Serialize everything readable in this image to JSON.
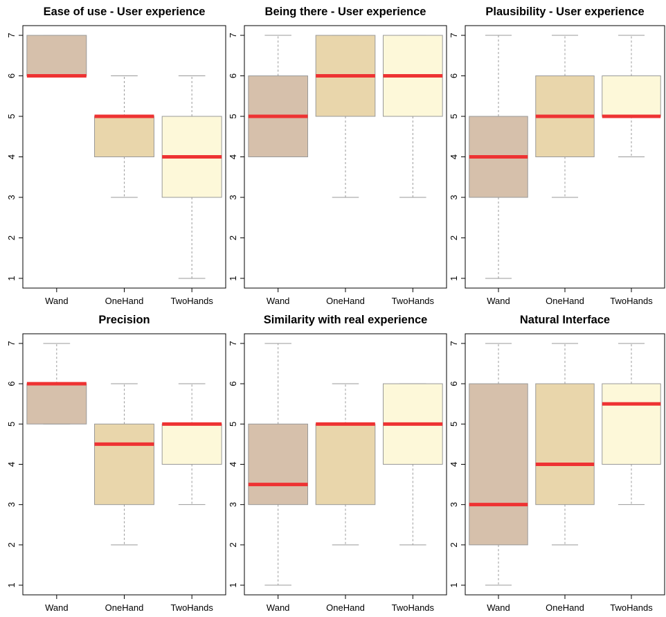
{
  "chart_data": [
    {
      "type": "box",
      "title": "Ease of use - User experience",
      "categories": [
        "Wand",
        "OneHand",
        "TwoHands"
      ],
      "colors": [
        "#d6c0ab",
        "#e9d6ab",
        "#fdf8d9"
      ],
      "median_color": "#ee3333",
      "min": [
        6,
        3,
        1
      ],
      "q1": [
        6,
        4,
        3
      ],
      "median": [
        6,
        5,
        4
      ],
      "q3": [
        7,
        5,
        5
      ],
      "max": [
        7,
        6,
        6
      ],
      "ylim": [
        0.76,
        7.24
      ],
      "yticks": [
        1,
        2,
        3,
        4,
        5,
        6,
        7
      ]
    },
    {
      "type": "box",
      "title": "Being there - User experience",
      "categories": [
        "Wand",
        "OneHand",
        "TwoHands"
      ],
      "colors": [
        "#d6c0ab",
        "#e9d6ab",
        "#fdf8d9"
      ],
      "median_color": "#ee3333",
      "min": [
        4,
        3,
        3
      ],
      "q1": [
        4,
        5,
        5
      ],
      "median": [
        5,
        6,
        6
      ],
      "q3": [
        6,
        7,
        7
      ],
      "max": [
        7,
        7,
        7
      ],
      "ylim": [
        0.76,
        7.24
      ],
      "yticks": [
        1,
        2,
        3,
        4,
        5,
        6,
        7
      ]
    },
    {
      "type": "box",
      "title": "Plausibility - User experience",
      "categories": [
        "Wand",
        "OneHand",
        "TwoHands"
      ],
      "colors": [
        "#d6c0ab",
        "#e9d6ab",
        "#fdf8d9"
      ],
      "median_color": "#ee3333",
      "min": [
        1,
        3,
        4
      ],
      "q1": [
        3,
        4,
        5
      ],
      "median": [
        4,
        5,
        5
      ],
      "q3": [
        5,
        6,
        6
      ],
      "max": [
        7,
        7,
        7
      ],
      "ylim": [
        0.76,
        7.24
      ],
      "yticks": [
        1,
        2,
        3,
        4,
        5,
        6,
        7
      ]
    },
    {
      "type": "box",
      "title": "Precision",
      "categories": [
        "Wand",
        "OneHand",
        "TwoHands"
      ],
      "colors": [
        "#d6c0ab",
        "#e9d6ab",
        "#fdf8d9"
      ],
      "median_color": "#ee3333",
      "min": [
        5,
        2,
        3
      ],
      "q1": [
        5,
        3,
        4
      ],
      "median": [
        6,
        4.5,
        5
      ],
      "q3": [
        6,
        5,
        5
      ],
      "max": [
        7,
        6,
        6
      ],
      "ylim": [
        0.76,
        7.24
      ],
      "yticks": [
        1,
        2,
        3,
        4,
        5,
        6,
        7
      ]
    },
    {
      "type": "box",
      "title": "Similarity with real experience",
      "categories": [
        "Wand",
        "OneHand",
        "TwoHands"
      ],
      "colors": [
        "#d6c0ab",
        "#e9d6ab",
        "#fdf8d9"
      ],
      "median_color": "#ee3333",
      "min": [
        1,
        2,
        2
      ],
      "q1": [
        3,
        3,
        4
      ],
      "median": [
        3.5,
        5,
        5
      ],
      "q3": [
        5,
        5,
        6
      ],
      "max": [
        7,
        6,
        6
      ],
      "ylim": [
        0.76,
        7.24
      ],
      "yticks": [
        1,
        2,
        3,
        4,
        5,
        6,
        7
      ]
    },
    {
      "type": "box",
      "title": "Natural Interface",
      "categories": [
        "Wand",
        "OneHand",
        "TwoHands"
      ],
      "colors": [
        "#d6c0ab",
        "#e9d6ab",
        "#fdf8d9"
      ],
      "median_color": "#ee3333",
      "min": [
        1,
        2,
        3
      ],
      "q1": [
        2,
        3,
        4
      ],
      "median": [
        3,
        4,
        5.5
      ],
      "q3": [
        6,
        6,
        6
      ],
      "max": [
        7,
        7,
        7
      ],
      "ylim": [
        0.76,
        7.24
      ],
      "yticks": [
        1,
        2,
        3,
        4,
        5,
        6,
        7
      ]
    }
  ]
}
